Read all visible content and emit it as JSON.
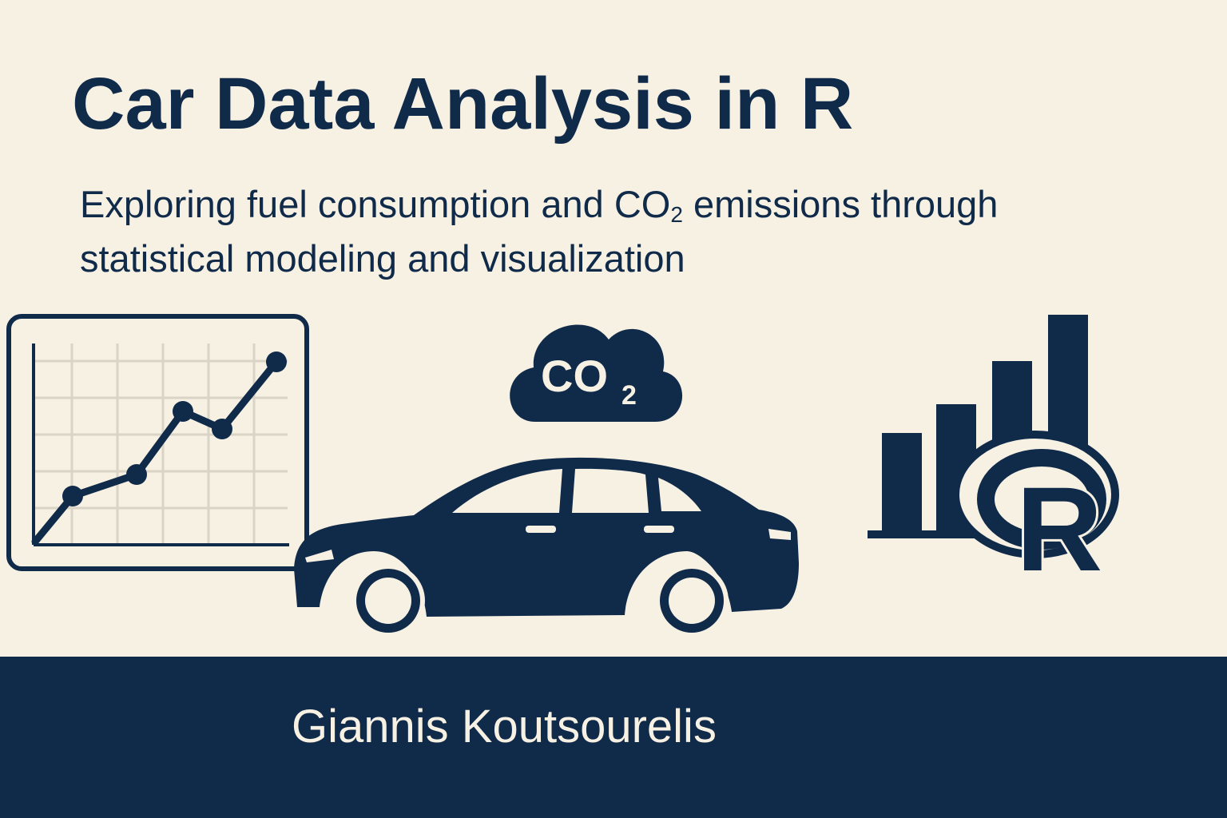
{
  "header": {
    "title": "Car Data Analysis in R",
    "subtitle_line1_before": "Exploring fuel consumption and CO",
    "subtitle_line1_sub": "2",
    "subtitle_line1_after": " emissions through",
    "subtitle_line2": "statistical modeling and visualization"
  },
  "icons": {
    "line_chart": "line-chart-icon",
    "cloud": "co2-cloud-icon",
    "car": "car-icon",
    "bar_chart": "bar-chart-icon",
    "r_logo": "r-logo-icon"
  },
  "cloud": {
    "label_main": "CO",
    "label_sub": "2"
  },
  "r_logo": {
    "letter": "R"
  },
  "footer": {
    "author": "Giannis Koutsourelis"
  },
  "colors": {
    "navy": "#102a4a",
    "cream": "#f7f1e4",
    "grid": "#d9d4c6"
  }
}
